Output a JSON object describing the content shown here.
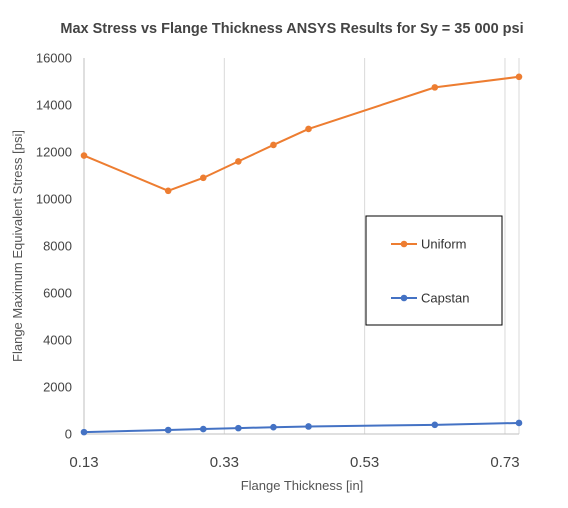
{
  "chart_data": {
    "type": "line",
    "title": "Max Stress vs Flange Thickness ANSYS Results for Sy = 35 000 psi",
    "xlabel": "Flange Thickness [in]",
    "ylabel": "Flange Maximum Equivalent Stress [psi]",
    "xlim": [
      0.13,
      0.75
    ],
    "ylim": [
      0,
      16000
    ],
    "xticks": [
      "0.13",
      "0.33",
      "0.53",
      "0.73"
    ],
    "yticks": [
      "0",
      "2000",
      "4000",
      "6000",
      "8000",
      "10000",
      "12000",
      "14000",
      "16000"
    ],
    "grid": "vertical",
    "legend_position": "right",
    "series": [
      {
        "name": "Uniform",
        "color": "#ED7D31",
        "x": [
          0.13,
          0.25,
          0.3,
          0.35,
          0.4,
          0.45,
          0.63,
          0.75
        ],
        "y": [
          11850,
          10350,
          10900,
          11600,
          12300,
          12980,
          14750,
          15200
        ]
      },
      {
        "name": "Capstan",
        "color": "#4472C4",
        "x": [
          0.13,
          0.25,
          0.3,
          0.35,
          0.4,
          0.45,
          0.63,
          0.75
        ],
        "y": [
          80,
          170,
          210,
          250,
          290,
          320,
          390,
          470
        ]
      }
    ]
  }
}
